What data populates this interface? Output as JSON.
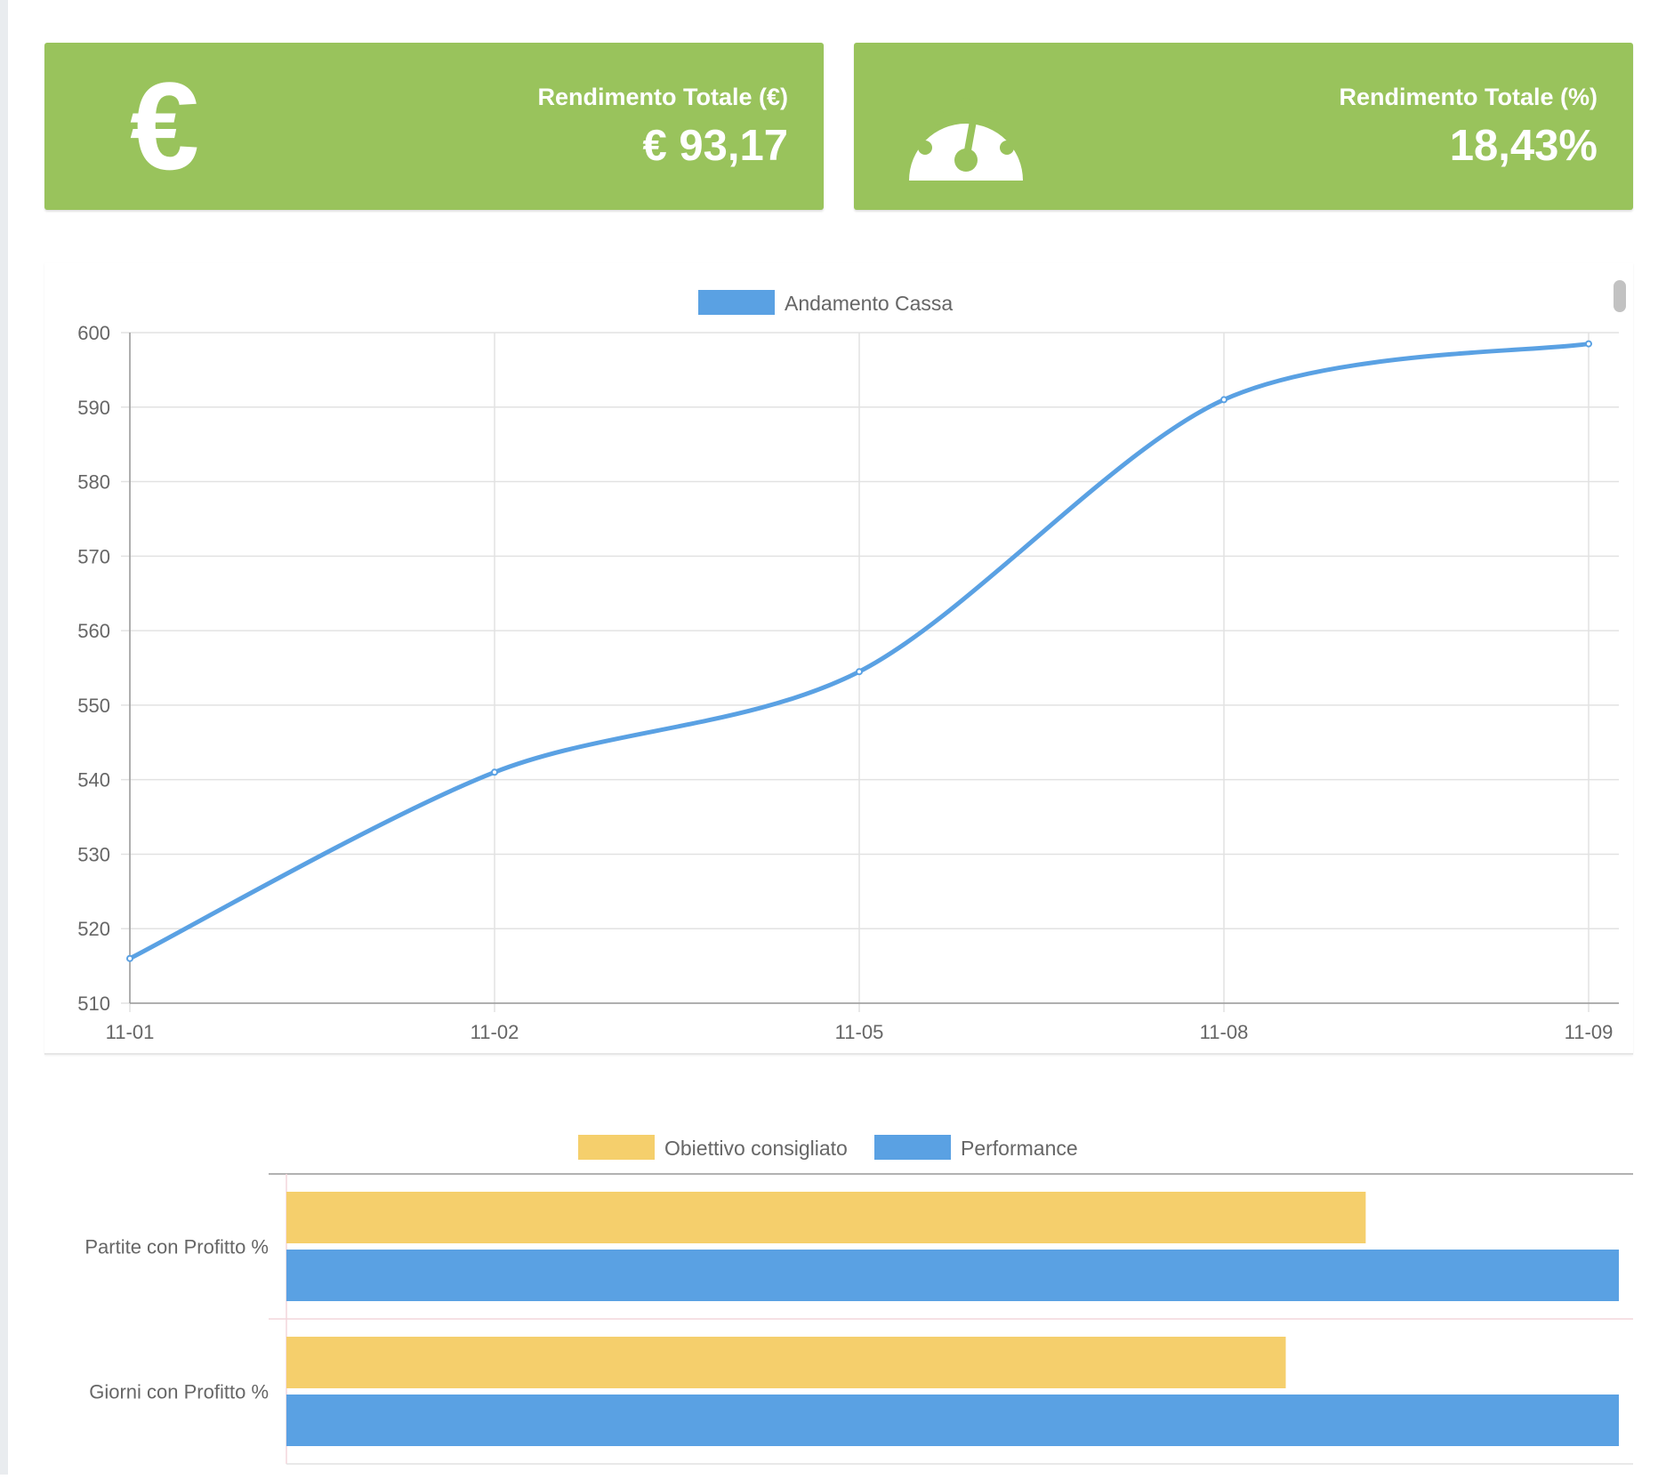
{
  "stats": {
    "total_return_eur": {
      "label": "Rendimento Totale (€)",
      "value": "€ 93,17",
      "icon": "euro-icon"
    },
    "total_return_pct": {
      "label": "Rendimento Totale (%)",
      "value": "18,43%",
      "icon": "dashboard-gauge-icon"
    }
  },
  "colors": {
    "card_bg": "#99c35c",
    "line": "#5aa1e3",
    "bar_target": "#f5cf6c",
    "bar_performance": "#5aa1e3",
    "grid": "#e2e2e2",
    "tick_text": "#666666"
  },
  "chart_data": [
    {
      "type": "line",
      "title": "",
      "xlabel": "",
      "ylabel": "",
      "legend": [
        "Andamento Cassa"
      ],
      "legend_position": "top",
      "grid": true,
      "categories": [
        "11-01",
        "11-02",
        "11-05",
        "11-08",
        "11-09"
      ],
      "series": [
        {
          "name": "Andamento Cassa",
          "values": [
            516,
            541,
            554.5,
            591,
            598.5
          ]
        }
      ],
      "ylim": [
        510,
        600
      ],
      "yticks": [
        510,
        520,
        530,
        540,
        550,
        560,
        570,
        580,
        590,
        600
      ]
    },
    {
      "type": "bar",
      "orientation": "horizontal",
      "title": "",
      "xlabel": "",
      "ylabel": "",
      "legend_position": "top",
      "grid": true,
      "categories": [
        "Partite con Profitto %",
        "Giorni con Profitto %"
      ],
      "series": [
        {
          "name": "Obiettivo consigliato",
          "values": [
            81,
            75
          ]
        },
        {
          "name": "Performance",
          "values": [
            100,
            100
          ]
        }
      ],
      "xlim": [
        0,
        100
      ]
    }
  ]
}
